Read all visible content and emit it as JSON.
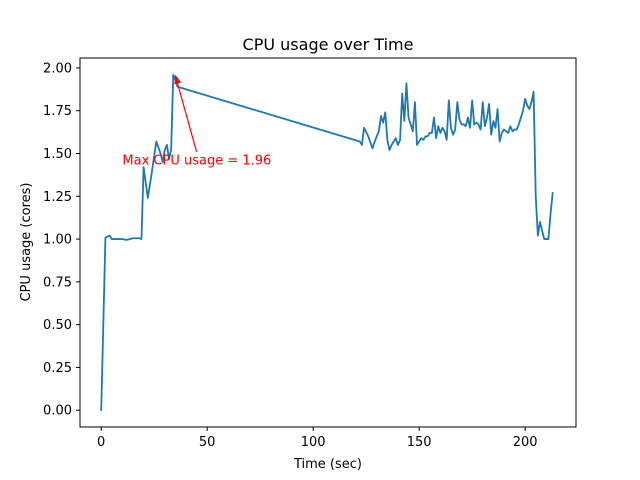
{
  "chart_data": {
    "type": "line",
    "title": "CPU usage over Time",
    "xlabel": "Time (sec)",
    "ylabel": "CPU usage (cores)",
    "xlim": [
      -10,
      224
    ],
    "ylim": [
      -0.098,
      2.058
    ],
    "xticks": [
      0,
      50,
      100,
      150,
      200
    ],
    "xtick_labels": [
      "0",
      "50",
      "100",
      "150",
      "200"
    ],
    "yticks": [
      0,
      0.25,
      0.5,
      0.75,
      1.0,
      1.25,
      1.5,
      1.75,
      2.0
    ],
    "ytick_labels": [
      "0.00",
      "0.25",
      "0.50",
      "0.75",
      "1.00",
      "1.25",
      "1.50",
      "1.75",
      "2.00"
    ],
    "grid": false,
    "series": [
      {
        "color": "#1f77b4",
        "x": [
          0,
          2,
          4,
          5,
          10,
          12,
          15,
          18,
          19,
          20,
          22,
          24,
          26,
          28,
          29,
          30,
          31,
          32,
          33,
          34,
          35,
          36,
          122,
          123,
          124,
          126,
          128,
          129,
          130,
          131,
          132,
          133,
          134,
          135,
          136,
          137,
          138,
          139,
          140,
          141,
          142,
          143,
          144,
          145,
          146,
          147,
          148,
          149,
          150,
          151,
          152,
          153,
          154,
          155,
          156,
          157,
          158,
          159,
          160,
          161,
          162,
          163,
          164,
          165,
          166,
          167,
          168,
          169,
          170,
          171,
          172,
          173,
          174,
          175,
          176,
          177,
          178,
          179,
          180,
          181,
          182,
          183,
          184,
          185,
          186,
          187,
          188,
          189,
          190,
          191,
          192,
          193,
          194,
          195,
          196,
          197,
          198,
          199,
          200,
          201,
          202,
          203,
          204,
          205,
          206,
          207,
          208,
          209,
          210,
          211,
          212,
          213
        ],
        "y": [
          0.0,
          1.01,
          1.02,
          1.0,
          1.0,
          0.995,
          1.005,
          1.005,
          1.0,
          1.42,
          1.24,
          1.4,
          1.57,
          1.5,
          1.45,
          1.52,
          1.55,
          1.47,
          1.52,
          1.96,
          1.93,
          1.89,
          1.57,
          1.55,
          1.65,
          1.6,
          1.53,
          1.57,
          1.6,
          1.63,
          1.72,
          1.68,
          1.74,
          1.58,
          1.52,
          1.55,
          1.57,
          1.59,
          1.55,
          1.58,
          1.85,
          1.69,
          1.91,
          1.71,
          1.67,
          1.63,
          1.8,
          1.55,
          1.57,
          1.59,
          1.58,
          1.6,
          1.6,
          1.62,
          1.62,
          1.71,
          1.59,
          1.66,
          1.62,
          1.65,
          1.63,
          1.58,
          1.81,
          1.65,
          1.61,
          1.64,
          1.8,
          1.7,
          1.67,
          1.67,
          1.66,
          1.71,
          1.65,
          1.81,
          1.67,
          1.68,
          1.67,
          1.64,
          1.8,
          1.66,
          1.71,
          1.79,
          1.61,
          1.69,
          1.65,
          1.76,
          1.57,
          1.62,
          1.64,
          1.63,
          1.62,
          1.66,
          1.63,
          1.64,
          1.64,
          1.67,
          1.71,
          1.75,
          1.82,
          1.78,
          1.76,
          1.8,
          1.86,
          1.25,
          1.02,
          1.1,
          1.05,
          1.0,
          1.0,
          1.0,
          1.15,
          1.27
        ]
      }
    ],
    "annotation": {
      "text": "Max CPU usage = 1.96",
      "color": "#ff0000",
      "point": [
        35,
        1.96
      ],
      "text_pos": [
        10,
        1.46
      ]
    }
  }
}
